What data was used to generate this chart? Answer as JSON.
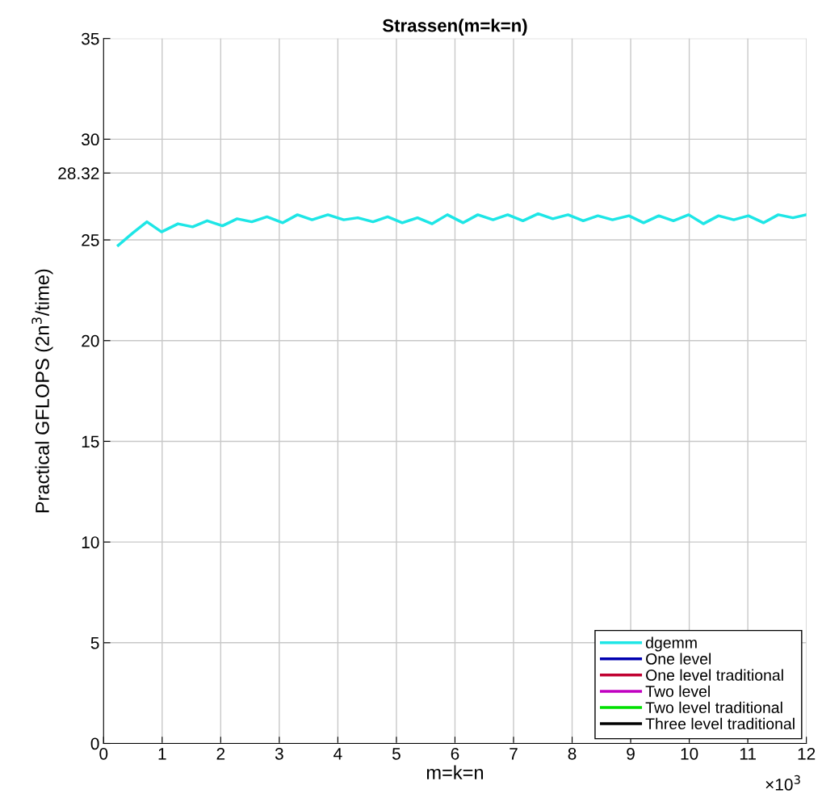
{
  "chart_data": {
    "type": "line",
    "title": "Strassen(m=k=n)",
    "xlabel": "m=k=n",
    "ylabel": "Practical GFLOPS (2n$^{3}$/time)",
    "annotations": [
      "×10$^{3}$"
    ],
    "xlim": [
      0,
      12
    ],
    "xticks": [
      0,
      1,
      2,
      3,
      4,
      5,
      6,
      7,
      8,
      9,
      10,
      11,
      12
    ],
    "ylim": [
      0,
      35
    ],
    "yticks": [
      0,
      5,
      10,
      15,
      20,
      25,
      28.32,
      30,
      35
    ],
    "grid": true,
    "legend": "bottom right",
    "line_style": "solid",
    "series": [
      {
        "name": "dgemm",
        "color": "#1ee6e6",
        "x": [
          0.25,
          0.5,
          0.74,
          0.99,
          1.27,
          1.52,
          1.77,
          2.03,
          2.28,
          2.53,
          2.79,
          3.06,
          3.31,
          3.56,
          3.83,
          4.1,
          4.34,
          4.6,
          4.85,
          5.1,
          5.36,
          5.61,
          5.87,
          6.14,
          6.39,
          6.65,
          6.9,
          7.16,
          7.42,
          7.67,
          7.93,
          8.19,
          8.44,
          8.69,
          8.97,
          9.22,
          9.48,
          9.73,
          9.99,
          10.24,
          10.5,
          10.76,
          11.01,
          11.27,
          11.52,
          11.77,
          12.0
        ],
        "values": [
          24.73,
          25.35,
          25.9,
          25.4,
          25.8,
          25.65,
          25.95,
          25.7,
          26.05,
          25.9,
          26.15,
          25.85,
          26.25,
          26.0,
          26.25,
          26.0,
          26.1,
          25.9,
          26.15,
          25.85,
          26.1,
          25.8,
          26.25,
          25.85,
          26.25,
          26.0,
          26.25,
          25.95,
          26.3,
          26.05,
          26.25,
          25.95,
          26.2,
          26.0,
          26.2,
          25.85,
          26.2,
          25.95,
          26.25,
          25.8,
          26.2,
          26.0,
          26.2,
          25.85,
          26.25,
          26.1,
          26.25
        ]
      },
      {
        "name": "One level",
        "color": "#0000b0"
      },
      {
        "name": "One level traditional",
        "color": "#c00030"
      },
      {
        "name": "Two level",
        "color": "#c000c0"
      },
      {
        "name": "Two level traditional",
        "color": "#00e000"
      },
      {
        "name": "Three level traditional",
        "color": "#000000"
      }
    ]
  }
}
